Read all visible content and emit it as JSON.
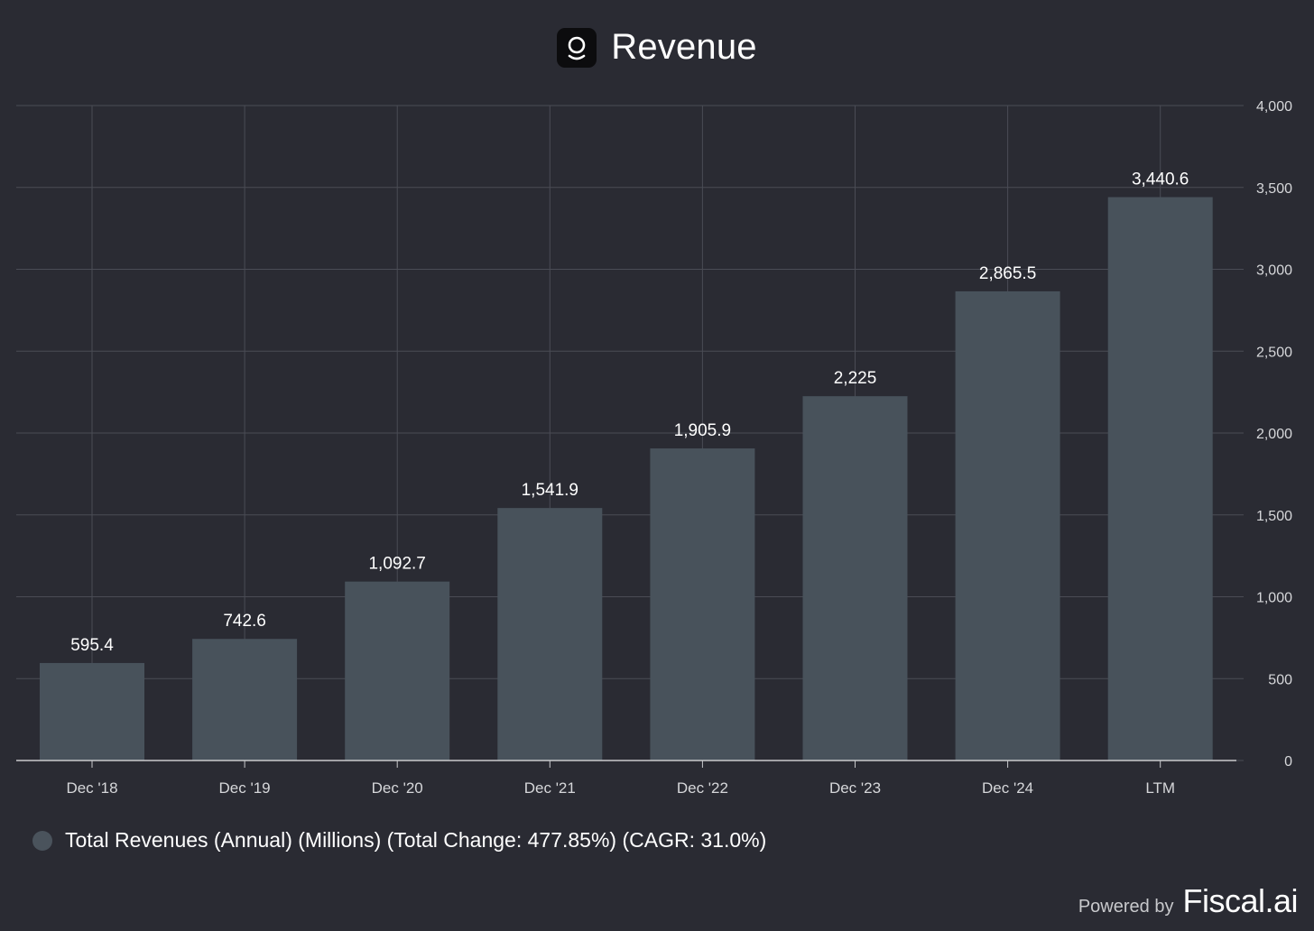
{
  "header": {
    "title": "Revenue",
    "logo_icon": "company-logo-icon"
  },
  "chart_data": {
    "type": "bar",
    "categories": [
      "Dec '18",
      "Dec '19",
      "Dec '20",
      "Dec '21",
      "Dec '22",
      "Dec '23",
      "Dec '24",
      "LTM"
    ],
    "values": [
      595.4,
      742.6,
      1092.7,
      1541.9,
      1905.9,
      2225,
      2865.5,
      3440.6
    ],
    "value_labels": [
      "595.4",
      "742.6",
      "1,092.7",
      "1,541.9",
      "1,905.9",
      "2,225",
      "2,865.5",
      "3,440.6"
    ],
    "ylim": [
      0,
      4000
    ],
    "y_ticks": [
      0,
      500,
      1000,
      1500,
      2000,
      2500,
      3000,
      3500,
      4000
    ],
    "y_tick_labels": [
      "0",
      "500",
      "1,000",
      "1,500",
      "2,000",
      "2,500",
      "3,000",
      "3,500",
      "4,000"
    ],
    "y_axis_side": "right",
    "grid": true,
    "legend_placement": "bottom-left",
    "series": [
      {
        "name": "Total Revenues (Annual) (Millions) (Total Change: 477.85%) (CAGR: 31.0%)",
        "values": [
          595.4,
          742.6,
          1092.7,
          1541.9,
          1905.9,
          2225,
          2865.5,
          3440.6
        ]
      }
    ],
    "colors": {
      "bar": "#48525b",
      "grid": "#4a4c55",
      "axis": "#c9cacd",
      "background": "#2a2b33"
    }
  },
  "legend": {
    "label": "Total Revenues (Annual) (Millions) (Total Change: 477.85%) (CAGR: 31.0%)"
  },
  "footer": {
    "powered_label": "Powered by",
    "brand": "Fiscal.ai"
  }
}
